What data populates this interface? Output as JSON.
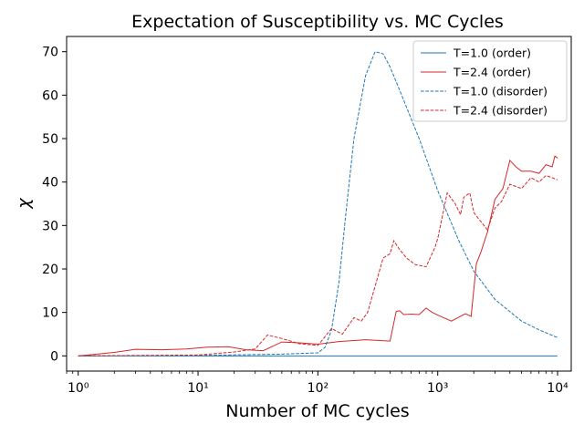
{
  "chart_data": {
    "type": "line",
    "title": "Expectation of Susceptibility vs. MC Cycles",
    "xlabel": "Number of MC cycles",
    "ylabel": "χ",
    "xscale": "log",
    "xlim": [
      0.8,
      13000
    ],
    "ylim": [
      -3.5,
      73.5
    ],
    "xticks": [
      1,
      10,
      100,
      1000,
      10000
    ],
    "xtick_labels": [
      "10⁰",
      "10¹",
      "10²",
      "10³",
      "10⁴"
    ],
    "yticks": [
      0,
      10,
      20,
      30,
      40,
      50,
      60,
      70
    ],
    "ytick_labels": [
      "0",
      "10",
      "20",
      "30",
      "40",
      "50",
      "60",
      "70"
    ],
    "grid": false,
    "legend_position": "top-right",
    "series": [
      {
        "name": "T=1.0 (order)",
        "color": "#1f77b4",
        "linestyle": "solid",
        "x": [
          1,
          10,
          100,
          1000,
          10000
        ],
        "y": [
          0,
          0,
          0,
          0,
          0
        ]
      },
      {
        "name": "T=2.4 (order)",
        "color": "#d62728",
        "linestyle": "solid",
        "x": [
          1,
          2,
          3,
          5,
          8,
          12,
          18,
          25,
          35,
          50,
          70,
          100,
          150,
          250,
          400,
          450,
          480,
          520,
          600,
          700,
          800,
          900,
          1000,
          1300,
          1700,
          1900,
          2100,
          2300,
          2600,
          3000,
          3500,
          4000,
          4500,
          5000,
          6000,
          7000,
          8000,
          9000,
          9500,
          10000
        ],
        "y": [
          0,
          0.8,
          1.5,
          1.4,
          1.6,
          2.0,
          2.1,
          1.4,
          1.2,
          3.2,
          3.0,
          2.7,
          3.3,
          3.7,
          3.4,
          10.2,
          10.4,
          9.5,
          9.6,
          9.5,
          11.0,
          10.0,
          9.4,
          8.0,
          9.7,
          9.1,
          21.2,
          24.0,
          28.5,
          36.0,
          38.5,
          45.0,
          43.5,
          42.5,
          42.5,
          42.0,
          44.0,
          43.5,
          46.0,
          45.5
        ]
      },
      {
        "name": "T=1.0 (disorder)",
        "color": "#1f77b4",
        "linestyle": "dashed",
        "x": [
          1,
          10,
          50,
          100,
          115,
          130,
          150,
          170,
          200,
          250,
          300,
          350,
          400,
          500,
          700,
          1000,
          1500,
          2000,
          3000,
          5000,
          7000,
          10000
        ],
        "y": [
          0,
          0.1,
          0.4,
          0.7,
          2.0,
          6.0,
          17.0,
          32.0,
          50.0,
          64.5,
          70.0,
          69.5,
          66.5,
          60.0,
          50.0,
          38.0,
          26.5,
          19.5,
          13.0,
          8.0,
          6.0,
          4.2
        ]
      },
      {
        "name": "T=2.4 (disorder)",
        "color": "#d62728",
        "linestyle": "dashed",
        "x": [
          1,
          10,
          20,
          30,
          38,
          50,
          70,
          100,
          130,
          160,
          200,
          230,
          260,
          300,
          350,
          400,
          430,
          480,
          550,
          650,
          800,
          950,
          1000,
          1100,
          1200,
          1400,
          1550,
          1650,
          1850,
          2000,
          2200,
          2600,
          3000,
          3400,
          4000,
          5000,
          6000,
          7000,
          8000,
          9000,
          10000
        ],
        "y": [
          0,
          0.2,
          0.9,
          1.6,
          4.8,
          4.0,
          2.8,
          2.4,
          6.3,
          5.0,
          8.8,
          8.0,
          10.0,
          16.0,
          22.5,
          23.5,
          26.5,
          24.5,
          22.5,
          21.0,
          20.5,
          25.0,
          27.0,
          32.5,
          37.5,
          35.0,
          32.5,
          36.5,
          37.5,
          33.0,
          31.5,
          29.0,
          34.0,
          35.5,
          39.5,
          38.5,
          41.0,
          40.0,
          41.5,
          41.0,
          40.5
        ]
      }
    ]
  }
}
